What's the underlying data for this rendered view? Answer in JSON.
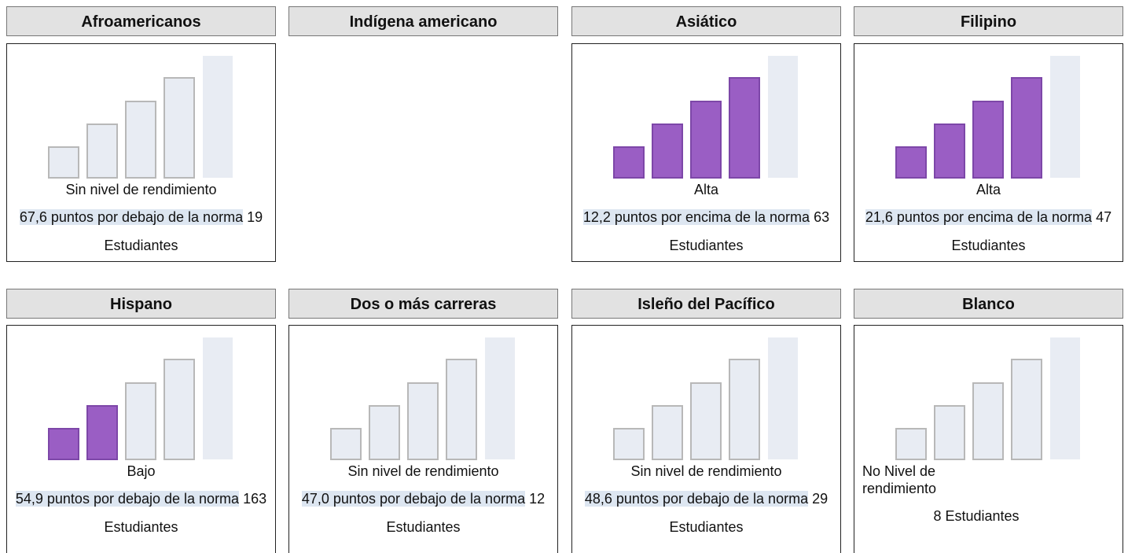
{
  "cards": [
    {
      "title": "Afroamericanos",
      "level": "Sin nivel de rendimiento",
      "distance": "67,6 puntos por debajo de la norma",
      "students": "19 Estudiantes",
      "filled": 0
    },
    {
      "title": "Indígena americano"
    },
    {
      "title": "Asiático",
      "level": "Alta",
      "distance": "12,2 puntos por encima de la norma",
      "students": "63 Estudiantes",
      "filled": 4
    },
    {
      "title": "Filipino",
      "level": "Alta",
      "distance": "21,6 puntos por encima de la norma",
      "students": "47 Estudiantes",
      "filled": 4
    },
    {
      "title": "Hispano",
      "level": "Bajo",
      "distance": "54,9 puntos por debajo de la norma",
      "students": "163 Estudiantes",
      "filled": 2
    },
    {
      "title": "Dos o más carreras",
      "level": "Sin nivel de rendimiento",
      "distance": "47,0 puntos por debajo de la norma",
      "students": "12 Estudiantes",
      "filled": 0
    },
    {
      "title": "Isleño del Pacífico",
      "level": "Sin nivel de rendimiento",
      "distance": "48,6 puntos por debajo de la norma",
      "students": "29 Estudiantes",
      "filled": 0
    },
    {
      "title": "Blanco",
      "level": "No Nivel de rendimiento",
      "students": "8 Estudiantes",
      "filled": 0
    }
  ]
}
